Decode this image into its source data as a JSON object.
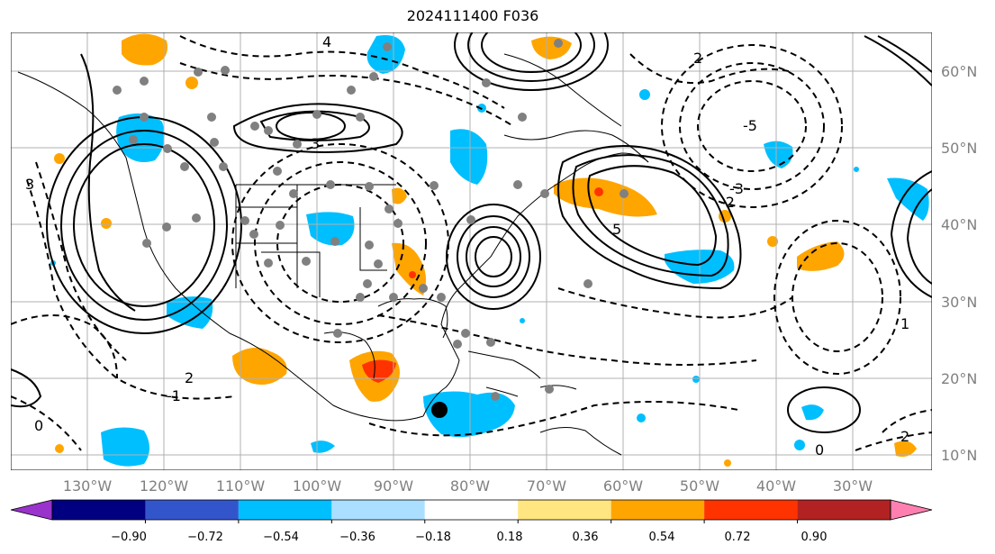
{
  "title": "2024111400 F036",
  "lon_labels": [
    "130°W",
    "120°W",
    "110°W",
    "100°W",
    "90°W",
    "80°W",
    "70°W",
    "60°W",
    "50°W",
    "40°W",
    "30°W"
  ],
  "lat_labels": [
    "60°N",
    "50°N",
    "40°N",
    "30°N",
    "20°N",
    "10°N"
  ],
  "colorbar": {
    "ticks": [
      "−0.90",
      "−0.72",
      "−0.54",
      "−0.36",
      "−0.18",
      "0.18",
      "0.36",
      "0.54",
      "0.72",
      "0.90"
    ],
    "colors": [
      "#9933cc",
      "#000080",
      "#3355cc",
      "#00bfff",
      "#aadfff",
      "#ffffff",
      "#ffe680",
      "#ffa500",
      "#ff3300",
      "#b22222",
      "#ff80b0"
    ]
  },
  "contour_labels": [
    "4",
    "3",
    "2",
    "0",
    "-1",
    "-2",
    "-3",
    "-5",
    "5",
    "1"
  ]
}
